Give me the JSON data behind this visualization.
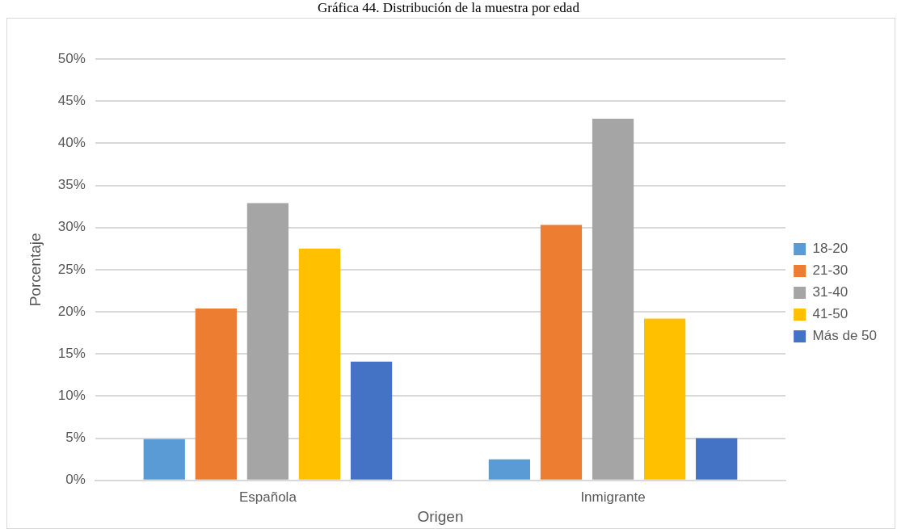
{
  "chart_data": {
    "type": "bar",
    "title": "Gráfica 44. Distribución de la muestra por edad",
    "xlabel": "Origen",
    "ylabel": "Porcentaje",
    "categories": [
      "Española",
      "Inmigrante"
    ],
    "series": [
      {
        "name": "18-20",
        "color": "#5b9bd5",
        "values": [
          4.9,
          2.5
        ]
      },
      {
        "name": "21-30",
        "color": "#ed7d31",
        "values": [
          20.4,
          30.3
        ]
      },
      {
        "name": "31-40",
        "color": "#a5a5a5",
        "values": [
          32.9,
          42.9
        ]
      },
      {
        "name": "41-50",
        "color": "#ffc000",
        "values": [
          27.5,
          19.2
        ]
      },
      {
        "name": "Más de 50",
        "color": "#4472c4",
        "values": [
          14.1,
          5.0
        ]
      }
    ],
    "ylim": [
      0,
      50
    ],
    "yticks": [
      {
        "value": 0,
        "label": "0%"
      },
      {
        "value": 5,
        "label": "5%"
      },
      {
        "value": 10,
        "label": "10%"
      },
      {
        "value": 15,
        "label": "15%"
      },
      {
        "value": 20,
        "label": "20%"
      },
      {
        "value": 25,
        "label": "25%"
      },
      {
        "value": 30,
        "label": "30%"
      },
      {
        "value": 35,
        "label": "35%"
      },
      {
        "value": 40,
        "label": "40%"
      },
      {
        "value": 45,
        "label": "45%"
      },
      {
        "value": 50,
        "label": "50%"
      }
    ],
    "grid": "y",
    "legend": "right"
  }
}
